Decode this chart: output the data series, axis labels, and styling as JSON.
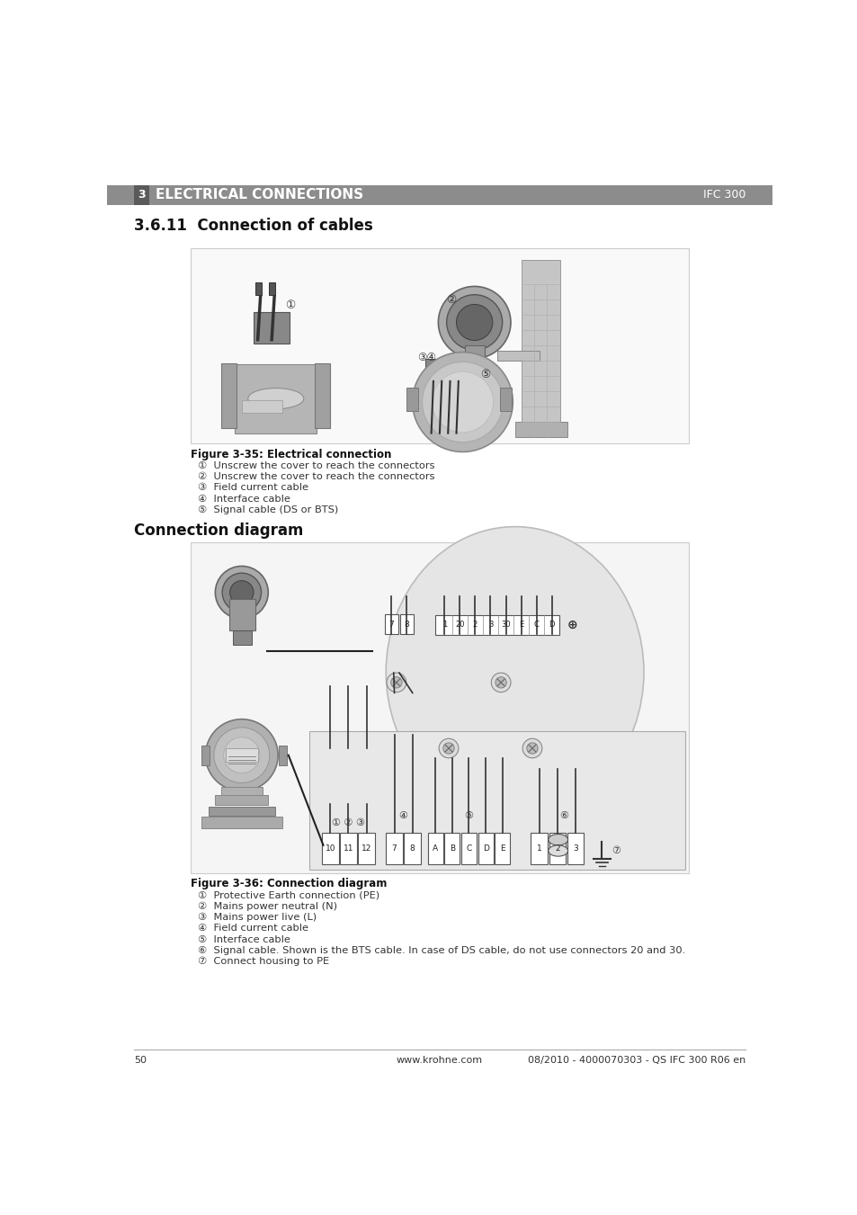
{
  "page_bg": "#ffffff",
  "header_bg": "#8c8c8c",
  "header_number_bg": "#5a5a5a",
  "header_text": "ELECTRICAL CONNECTIONS",
  "header_number": "3",
  "header_right": "IFC 300",
  "section_title": "3.6.11  Connection of cables",
  "fig1_caption": "Figure 3-35: Electrical connection",
  "fig1_items": [
    "①  Unscrew the cover to reach the connectors",
    "②  Unscrew the cover to reach the connectors",
    "③  Field current cable",
    "④  Interface cable",
    "⑤  Signal cable (DS or BTS)"
  ],
  "fig2_title": "Connection diagram",
  "fig2_caption": "Figure 3-36: Connection diagram",
  "fig2_items": [
    "①  Protective Earth connection (PE)",
    "②  Mains power neutral (N)",
    "③  Mains power live (L)",
    "④  Field current cable",
    "⑤  Interface cable",
    "⑥  Signal cable. Shown is the BTS cable. In case of DS cable, do not use connectors 20 and 30.",
    "⑦  Connect housing to PE"
  ],
  "footer_page": "50",
  "footer_center": "www.krohne.com",
  "footer_right": "08/2010 - 4000070303 - QS IFC 300 R06 en"
}
